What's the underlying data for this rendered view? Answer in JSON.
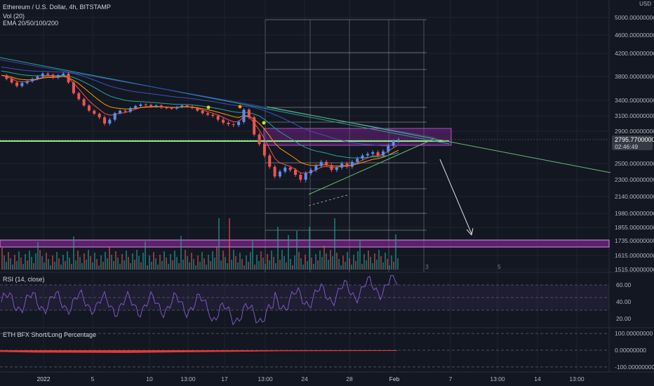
{
  "header": {
    "symbol": "Ethereum / U.S. Dollar, 4h, BITSTAMP",
    "volume_label": "Vol (20)",
    "ema_label": "EMA 20/50/100/200",
    "currency": "USD"
  },
  "price_tag": {
    "price": "2795.77000000",
    "countdown": "02:46:49"
  },
  "rsi": {
    "label": "RSI (14, close)",
    "ticks": [
      "60.00",
      "40.00",
      "20.00"
    ]
  },
  "bfx": {
    "label": "ETH BFX Short/Long Percentage",
    "ticks": [
      "100.00000000",
      "0.00000000",
      "-100.00000000"
    ]
  },
  "chart_data": {
    "type": "candlestick",
    "price_ticks": [
      5000,
      4600,
      4200,
      3800,
      3400,
      3100,
      2900,
      2500,
      2300,
      2140,
      1980,
      1855,
      1735,
      1615,
      1515
    ],
    "price_tick_labels": [
      "5000.00000000",
      "4600.00000000",
      "4200.00000000",
      "3800.00000000",
      "3400.00000000",
      "3100.00000000",
      "2900.00000000",
      "2500.00000000",
      "2300.00000000",
      "2140.00000000",
      "1980.00000000",
      "1855.00000000",
      "1735.00000000",
      "1615.00000000",
      "1515.00000000"
    ],
    "x_tick_labels": [
      "2022",
      "5",
      "10",
      "13:00",
      "17",
      "13:00",
      "24",
      "28",
      "Feb",
      "7",
      "13:00",
      "14",
      "13:00"
    ],
    "fib_labels": [
      "3",
      "5"
    ],
    "price_path": [
      3820,
      3760,
      3700,
      3640,
      3690,
      3720,
      3760,
      3800,
      3850,
      3830,
      3780,
      3820,
      3850,
      3700,
      3520,
      3420,
      3300,
      3200,
      3140,
      3080,
      3000,
      3050,
      3150,
      3200,
      3180,
      3250,
      3290,
      3320,
      3310,
      3280,
      3300,
      3260,
      3250,
      3240,
      3270,
      3300,
      3280,
      3250,
      3200,
      3150,
      3120,
      3100,
      3050,
      3010,
      2990,
      2980,
      3020,
      3220,
      3080,
      2860,
      2740,
      2600,
      2460,
      2340,
      2400,
      2450,
      2420,
      2360,
      2300,
      2380,
      2420,
      2470,
      2520,
      2480,
      2420,
      2450,
      2500,
      2460,
      2520,
      2560,
      2600,
      2620,
      2640,
      2600,
      2650,
      2720,
      2780,
      2796
    ],
    "last_price": 2795.77,
    "rsi_range": [
      20,
      80
    ],
    "bfx_range": [
      -130,
      130
    ]
  }
}
